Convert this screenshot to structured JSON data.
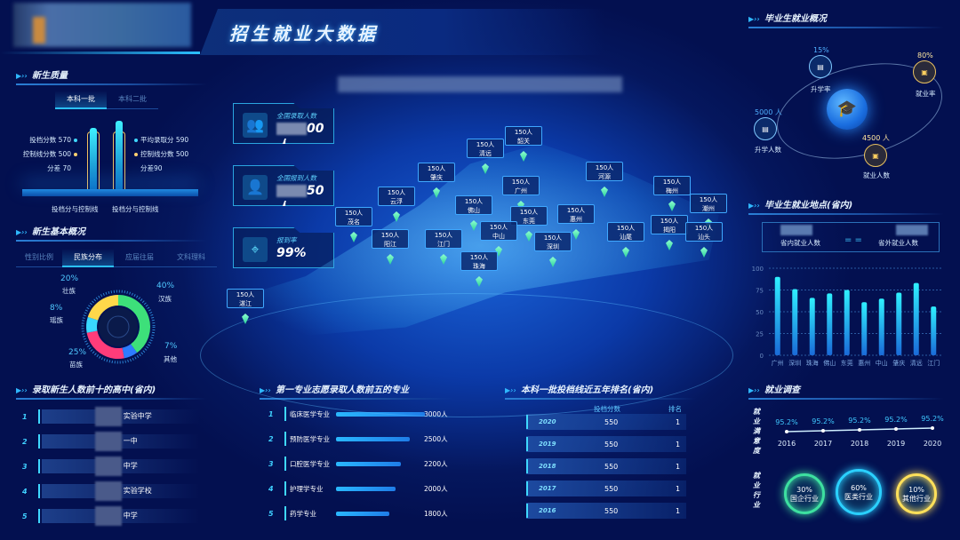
{
  "header": {
    "title": "招生就业大数据"
  },
  "quality": {
    "title": "新生质量",
    "tabs": [
      "本科一批",
      "本科二批"
    ],
    "left": {
      "score": "投档分数 570",
      "control": "控制线分数 500",
      "diff": "分差 70"
    },
    "right": {
      "score": "平均录取分 590",
      "control": "控制线分数 500",
      "diff": "分差90"
    },
    "bar_labels": [
      "投档分与控制线",
      "投档分与控制线"
    ]
  },
  "overview": {
    "title": "新生基本概况",
    "tabs": [
      "性别比例",
      "民族分布",
      "应届往届",
      "文科理科"
    ],
    "slices": [
      {
        "name": "汉族",
        "pct": "40%",
        "value": 40,
        "color": "#3de07a"
      },
      {
        "name": "其他",
        "pct": "7%",
        "value": 7,
        "color": "#2d7cff"
      },
      {
        "name": "苗族",
        "pct": "25%",
        "value": 25,
        "color": "#ff3c7a"
      },
      {
        "name": "瑶族",
        "pct": "8%",
        "value": 8,
        "color": "#39d8ff"
      },
      {
        "name": "壮族",
        "pct": "20%",
        "value": 20,
        "color": "#ffd84a"
      }
    ]
  },
  "schools": {
    "title": "录取新生人数前十的高中(省内)",
    "rows": [
      {
        "rank": "1",
        "name": "实验中学"
      },
      {
        "rank": "2",
        "name": "一中"
      },
      {
        "rank": "3",
        "name": "中学"
      },
      {
        "rank": "4",
        "name": "实验学校"
      },
      {
        "rank": "5",
        "name": "中学"
      }
    ]
  },
  "majors": {
    "title": "第一专业志愿录取人数前五的专业",
    "rows": [
      {
        "rank": "1",
        "name": "临床医学专业",
        "count": "3000人",
        "value": 3000
      },
      {
        "rank": "2",
        "name": "预防医学专业",
        "count": "2500人",
        "value": 2500
      },
      {
        "rank": "3",
        "name": "口腔医学专业",
        "count": "2200人",
        "value": 2200
      },
      {
        "rank": "4",
        "name": "护理学专业",
        "count": "2000人",
        "value": 2000
      },
      {
        "rank": "5",
        "name": "药学专业",
        "count": "1800人",
        "value": 1800
      }
    ]
  },
  "ranking": {
    "title": "本科一批投档线近五年排名(省内)",
    "headers": [
      "投档分数",
      "排名"
    ],
    "rows": [
      {
        "year": "2020",
        "score": "550",
        "rank": "1"
      },
      {
        "year": "2019",
        "score": "550",
        "rank": "1"
      },
      {
        "year": "2018",
        "score": "550",
        "rank": "1"
      },
      {
        "year": "2017",
        "score": "550",
        "rank": "1"
      },
      {
        "year": "2016",
        "score": "550",
        "rank": "1"
      }
    ]
  },
  "kpis": [
    {
      "label": "全国录取人数",
      "value": "00人",
      "icon": "users-icon"
    },
    {
      "label": "全国报到人数",
      "value": "50人",
      "icon": "user-check-icon"
    },
    {
      "label": "报到率",
      "value": "99%",
      "icon": "location-check-icon"
    }
  ],
  "map": {
    "cities": [
      {
        "name": "韶关",
        "count": "150人"
      },
      {
        "name": "清远",
        "count": "150人"
      },
      {
        "name": "肇庆",
        "count": "150人"
      },
      {
        "name": "广州",
        "count": "150人"
      },
      {
        "name": "云浮",
        "count": "150人"
      },
      {
        "name": "佛山",
        "count": "150人"
      },
      {
        "name": "河源",
        "count": "150人"
      },
      {
        "name": "梅州",
        "count": "150人"
      },
      {
        "name": "潮州",
        "count": "150人"
      },
      {
        "name": "东莞",
        "count": "150人"
      },
      {
        "name": "惠州",
        "count": "150人"
      },
      {
        "name": "揭阳",
        "count": "150人"
      },
      {
        "name": "汕尾",
        "count": "150人"
      },
      {
        "name": "汕头",
        "count": "150人"
      },
      {
        "name": "茂名",
        "count": "150人"
      },
      {
        "name": "阳江",
        "count": "150人"
      },
      {
        "name": "江门",
        "count": "150人"
      },
      {
        "name": "中山",
        "count": "150人"
      },
      {
        "name": "珠海",
        "count": "150人"
      },
      {
        "name": "深圳",
        "count": "150人"
      },
      {
        "name": "湛江",
        "count": "150人"
      }
    ]
  },
  "employment": {
    "title": "毕业生就业概况",
    "further_rate": {
      "value": "15%",
      "label": "升学率"
    },
    "employ_rate": {
      "value": "80%",
      "label": "就业率"
    },
    "further_count": {
      "value": "5000 人",
      "label": "升学人数"
    },
    "employ_count": {
      "value": "4500 人",
      "label": "就业人数"
    }
  },
  "location": {
    "title": "毕业生就业地点(省内)",
    "in_label": "省内就业人数",
    "out_label": "省外就业人数",
    "chart_data": {
      "type": "bar",
      "categories": [
        "广州",
        "深圳",
        "珠海",
        "佛山",
        "东莞",
        "惠州",
        "中山",
        "肇庆",
        "清远",
        "江门"
      ],
      "values": [
        90,
        76,
        66,
        71,
        75,
        61,
        65,
        72,
        83,
        56
      ],
      "ylim": [
        0,
        100
      ],
      "yticks": [
        "0",
        "25",
        "50",
        "75",
        "100"
      ],
      "grid": true
    }
  },
  "survey": {
    "title": "就业调查",
    "satisfaction_label": "就业满意度",
    "industry_label": "就业行业",
    "chart_data": {
      "type": "line",
      "categories": [
        "2016",
        "2017",
        "2018",
        "2019",
        "2020"
      ],
      "labels": [
        "95.2%",
        "95.2%",
        "95.2%",
        "95.2%",
        "95.2%"
      ],
      "values": [
        95.2,
        95.2,
        95.2,
        95.2,
        95.2
      ]
    },
    "industries": [
      {
        "pct": "30%",
        "name": "国企行业",
        "color": "#3de0a0"
      },
      {
        "pct": "60%",
        "name": "医类行业",
        "color": "#2ad0ff"
      },
      {
        "pct": "10%",
        "name": "其他行业",
        "color": "#ffe05a"
      }
    ]
  }
}
